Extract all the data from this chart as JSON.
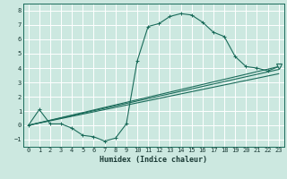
{
  "xlabel": "Humidex (Indice chaleur)",
  "xlim": [
    -0.5,
    23.5
  ],
  "ylim": [
    -1.5,
    8.5
  ],
  "xticks": [
    0,
    1,
    2,
    3,
    4,
    5,
    6,
    7,
    8,
    9,
    10,
    11,
    12,
    13,
    14,
    15,
    16,
    17,
    18,
    19,
    20,
    21,
    22,
    23
  ],
  "yticks": [
    -1,
    0,
    1,
    2,
    3,
    4,
    5,
    6,
    7,
    8
  ],
  "bg_color": "#cce8e0",
  "grid_color": "#ffffff",
  "line_color": "#1a6b5a",
  "main_curve_x": [
    0,
    1,
    2,
    3,
    4,
    5,
    6,
    7,
    8,
    9,
    10,
    11,
    12,
    13,
    14,
    15,
    16,
    17,
    18,
    19,
    20,
    21,
    22,
    23
  ],
  "main_curve_y": [
    0.0,
    1.1,
    0.1,
    0.1,
    -0.2,
    -0.7,
    -0.8,
    -1.1,
    -0.9,
    0.1,
    4.5,
    6.9,
    7.1,
    7.6,
    7.8,
    7.7,
    7.2,
    6.5,
    6.2,
    4.8,
    4.1,
    4.0,
    3.8,
    4.1
  ],
  "line1_y_end": 4.1,
  "line2_y_end": 3.6,
  "line3_y_end": 3.9,
  "tick_fontsize": 5.0,
  "xlabel_fontsize": 6.0
}
